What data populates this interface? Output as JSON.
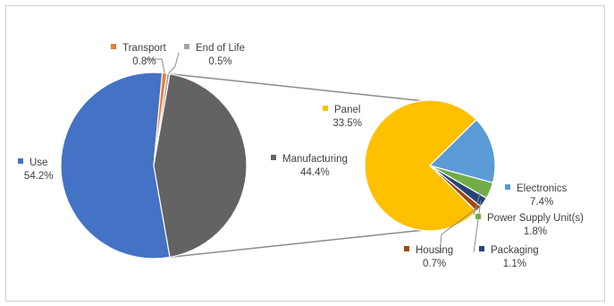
{
  "chart_data": {
    "type": "pie",
    "subtype": "pie-of-pie",
    "title": "",
    "slices": [
      {
        "name": "Use",
        "value": 54.2,
        "label": "54.2%",
        "color": "#4472C4"
      },
      {
        "name": "Transport",
        "value": 0.8,
        "label": "0.8%",
        "color": "#ED7D31"
      },
      {
        "name": "End of Life",
        "value": 0.5,
        "label": "0.5%",
        "color": "#A5A5A5"
      },
      {
        "name": "Manufacturing",
        "value": 44.4,
        "label": "44.4%",
        "color": "#636363"
      }
    ],
    "secondary": {
      "parent": "Manufacturing",
      "slices": [
        {
          "name": "Panel",
          "value": 33.5,
          "label": "33.5%",
          "color": "#FFC000"
        },
        {
          "name": "Electronics",
          "value": 7.4,
          "label": "7.4%",
          "color": "#5B9BD5"
        },
        {
          "name": "Power Supply Unit(s)",
          "value": 1.8,
          "label": "1.8%",
          "color": "#70AD47"
        },
        {
          "name": "Packaging",
          "value": 1.1,
          "label": "1.1%",
          "color": "#264478"
        },
        {
          "name": "Housing",
          "value": 0.7,
          "label": "0.7%",
          "color": "#9E480E"
        }
      ]
    },
    "legend": "none",
    "data_labels": "category name and percentage"
  }
}
